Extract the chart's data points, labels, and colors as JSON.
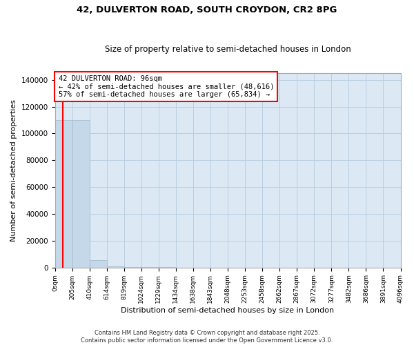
{
  "title": "42, DULVERTON ROAD, SOUTH CROYDON, CR2 8PG",
  "subtitle": "Size of property relative to semi-detached houses in London",
  "xlabel": "Distribution of semi-detached houses by size in London",
  "ylabel": "Number of semi-detached properties",
  "property_size": 96,
  "annotation_text_line1": "42 DULVERTON ROAD: 96sqm",
  "annotation_text_line2": "← 42% of semi-detached houses are smaller (48,616)",
  "annotation_text_line3": "57% of semi-detached houses are larger (65,834) →",
  "bar_color": "#c5d8ea",
  "bar_edgecolor": "#a0b8cc",
  "vline_color": "red",
  "ylim": [
    0,
    145000
  ],
  "yticks": [
    0,
    20000,
    40000,
    60000,
    80000,
    100000,
    120000,
    140000
  ],
  "bin_edges": [
    0,
    205,
    410,
    614,
    819,
    1024,
    1229,
    1434,
    1638,
    1843,
    2048,
    2253,
    2458,
    2662,
    2867,
    3072,
    3277,
    3482,
    3686,
    3891,
    4096
  ],
  "bin_counts": [
    110000,
    110000,
    5500,
    600,
    200,
    100,
    60,
    40,
    30,
    20,
    15,
    12,
    10,
    8,
    6,
    5,
    4,
    3,
    2,
    2
  ],
  "footer_line1": "Contains HM Land Registry data © Crown copyright and database right 2025.",
  "footer_line2": "Contains public sector information licensed under the Open Government Licence v3.0.",
  "background_color": "#ffffff",
  "plot_bg_color": "#dce9f5",
  "grid_color": "#b8cfe0"
}
